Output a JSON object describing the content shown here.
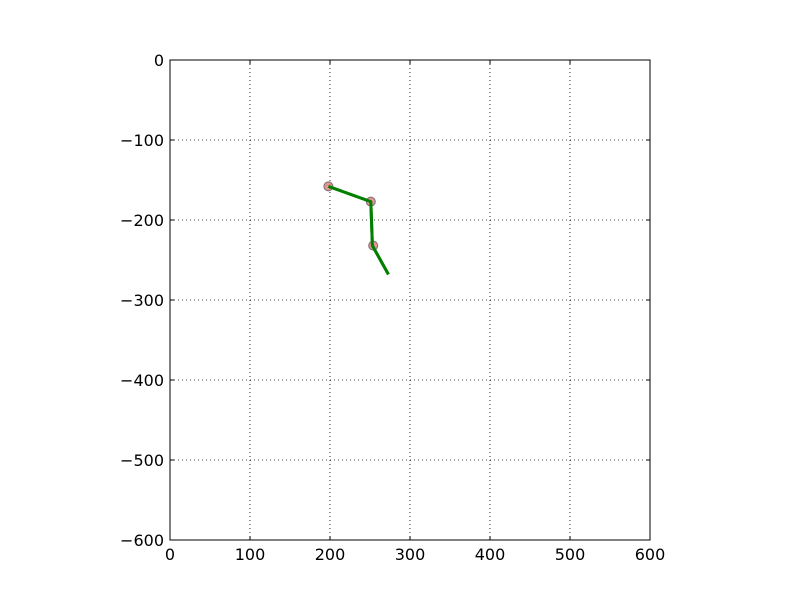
{
  "chart_data": {
    "type": "line",
    "title": "",
    "xlabel": "",
    "ylabel": "",
    "xlim": [
      0,
      600
    ],
    "ylim": [
      -600,
      0
    ],
    "x_ticks": [
      0,
      100,
      200,
      300,
      400,
      500,
      600
    ],
    "y_ticks": [
      0,
      -100,
      -200,
      -300,
      -400,
      -500,
      -600
    ],
    "x_tick_labels": [
      "0",
      "100",
      "200",
      "300",
      "400",
      "500",
      "600"
    ],
    "y_tick_labels": [
      "0",
      "−100",
      "−200",
      "−300",
      "−400",
      "−500",
      "−600"
    ],
    "grid": true,
    "series": [
      {
        "x": [
          198,
          251,
          253,
          273
        ],
        "y": [
          -158,
          -177,
          -232,
          -268
        ],
        "color": "#008000"
      }
    ],
    "markers": {
      "x": [
        198,
        251,
        254
      ],
      "y": [
        -158,
        -177,
        -232
      ],
      "face_color": "#e08080",
      "edge_color": "#707070"
    }
  }
}
